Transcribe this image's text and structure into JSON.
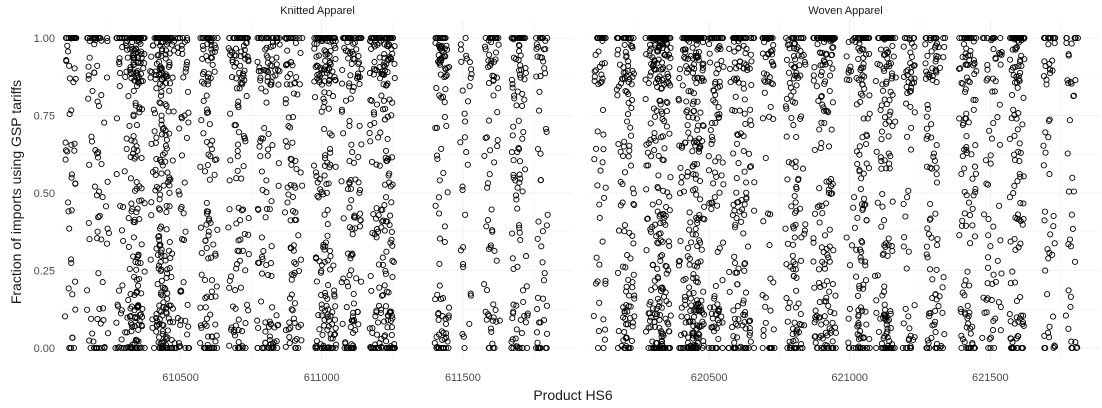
{
  "chart_data": {
    "type": "scatter",
    "xlabel": "Product HS6",
    "ylabel": "Fraction of imports using GSP tariffs",
    "ylim": [
      0,
      1
    ],
    "y_ticks": [
      "0.00",
      "0.25",
      "0.50",
      "0.75",
      "1.00"
    ],
    "grid": true,
    "marker": "open-circle",
    "panels": [
      {
        "title": "Knitted Apparel",
        "xlim": [
          610080,
          611890
        ],
        "x_ticks": [
          "610500",
          "611000",
          "611500"
        ],
        "product_columns": [
          610110,
          610190,
          610230,
          610290,
          610330,
          610342,
          610352,
          610413,
          610432,
          610443,
          610452,
          610463,
          610510,
          610590,
          610610,
          610690,
          610711,
          610721,
          610791,
          610821,
          610832,
          610891,
          610910,
          610990,
          611011,
          611030,
          611090,
          611120,
          611190,
          611212,
          611231,
          611241,
          611420,
          611430,
          611510,
          611596,
          611610,
          611692,
          611710,
          611780
        ]
      },
      {
        "title": "Woven Apparel",
        "xlim": [
          620080,
          621890
        ],
        "x_ticks": [
          "620500",
          "621000",
          "621500"
        ],
        "product_columns": [
          620111,
          620193,
          620213,
          620293,
          620311,
          620332,
          620342,
          620343,
          620412,
          620442,
          620443,
          620462,
          620463,
          620520,
          620530,
          620590,
          620610,
          620640,
          620711,
          620791,
          620821,
          620891,
          620920,
          620930,
          621010,
          621040,
          621050,
          621111,
          621132,
          621143,
          621210,
          621290,
          621320,
          621410,
          621430,
          621490,
          621520,
          621590,
          621600,
          621710,
          621790
        ]
      }
    ],
    "note": "Each product column shows many open circles spread across the full 0 to 1 range, densest at 1.00, at 0.00 and near 0.10; individual observations are too dense to read off exactly."
  }
}
